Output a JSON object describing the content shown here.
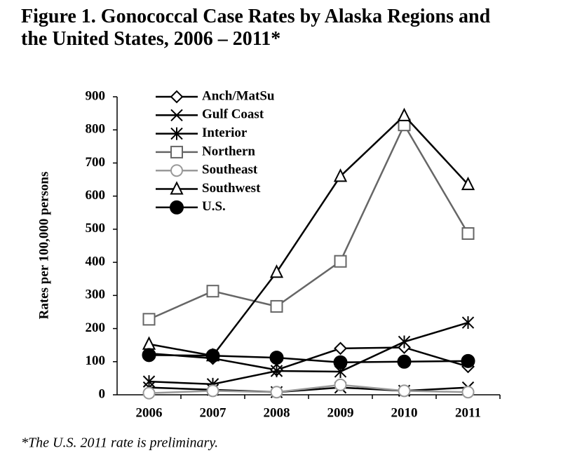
{
  "chart_data": {
    "type": "line",
    "title": "Figure 1. Gonococcal Case Rates by Alaska Regions and the United States, 2006 – 2011*",
    "y_label": "Rates per 100,000 persons",
    "footnote": "*The U.S. 2011 rate is preliminary.",
    "categories": [
      "2006",
      "2007",
      "2008",
      "2009",
      "2010",
      "2011"
    ],
    "ylim": [
      0,
      900
    ],
    "yticks": [
      0,
      100,
      200,
      300,
      400,
      500,
      600,
      700,
      800,
      900
    ],
    "legend": "top-left",
    "series": [
      {
        "name": "Anch/MatSu",
        "color": "#000000",
        "marker": "diamond",
        "values": [
          125,
          110,
          75,
          140,
          143,
          85
        ]
      },
      {
        "name": "Gulf Coast",
        "color": "#000000",
        "marker": "x",
        "values": [
          22,
          15,
          8,
          22,
          12,
          22
        ]
      },
      {
        "name": "Interior",
        "color": "#000000",
        "marker": "asterisk",
        "values": [
          40,
          32,
          72,
          70,
          160,
          218
        ]
      },
      {
        "name": "Northern",
        "color": "#666666",
        "marker": "square",
        "values": [
          228,
          313,
          267,
          403,
          815,
          487
        ]
      },
      {
        "name": "Southeast",
        "color": "#999999",
        "marker": "circle",
        "values": [
          5,
          12,
          8,
          30,
          12,
          8
        ]
      },
      {
        "name": "Southwest",
        "color": "#000000",
        "marker": "triangle",
        "values": [
          153,
          118,
          370,
          660,
          843,
          635
        ]
      },
      {
        "name": "U.S.",
        "color": "#000000",
        "marker": "dot",
        "values": [
          120,
          118,
          112,
          98,
          100,
          102
        ]
      }
    ]
  }
}
